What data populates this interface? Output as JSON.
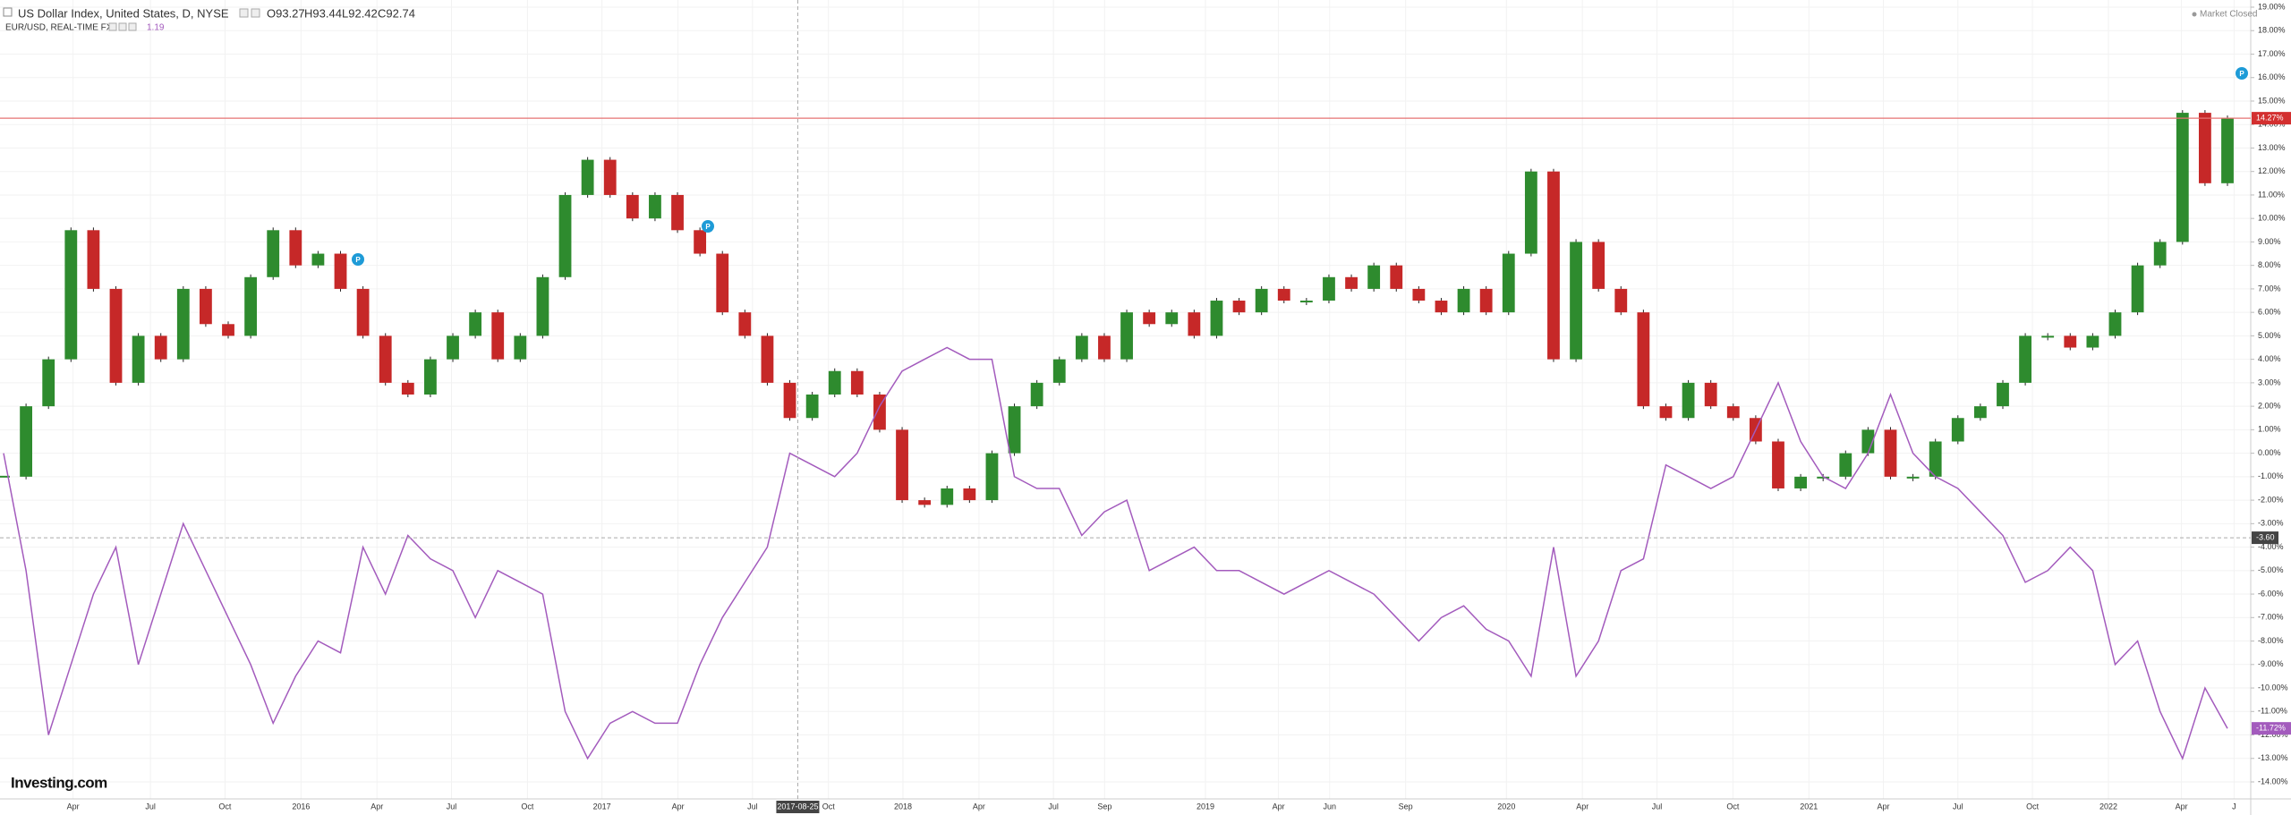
{
  "chart_data": {
    "type": "candle-line",
    "series": [
      {
        "name": "US Dollar Index, United States, D, NYSE",
        "up_color": "#2e8b2e",
        "down_color": "#c62828",
        "values": [
          -1,
          2,
          4,
          9.5,
          7,
          3,
          5,
          4,
          7,
          5.5,
          5,
          7.5,
          9.5,
          8,
          8.5,
          7,
          5,
          3,
          2.5,
          4,
          5,
          6,
          4,
          5,
          7.5,
          11,
          12.5,
          11,
          10,
          11,
          9.5,
          8.5,
          6,
          5,
          3,
          1.5,
          2.5,
          3.5,
          2.5,
          1,
          -2,
          -2.2,
          -1.5,
          -2,
          0,
          2,
          3,
          4,
          5,
          4,
          6,
          5.5,
          6,
          5,
          6.5,
          6,
          7,
          6.5,
          6.5,
          7.5,
          7,
          8,
          7,
          6.5,
          6,
          7,
          6,
          8.5,
          12,
          4,
          9,
          7,
          6,
          2,
          1.5,
          3,
          2,
          1.5,
          0.5,
          -1.5,
          -1,
          -1,
          0,
          1,
          -1,
          -1,
          0.5,
          1.5,
          2,
          3,
          5,
          5,
          4.5,
          5,
          6,
          8,
          9,
          14.5,
          11.5,
          14.27
        ]
      },
      {
        "name": "EUR/USD, REAL-TIME FX",
        "color": "#a35bbd",
        "values": [
          0,
          -5,
          -12,
          -9,
          -6,
          -4,
          -9,
          -6,
          -3,
          -5,
          -7,
          -9,
          -11.5,
          -9.5,
          -8,
          -8.5,
          -4,
          -6,
          -3.5,
          -4.5,
          -5,
          -7,
          -5,
          -5.5,
          -6,
          -11,
          -13,
          -11.5,
          -11,
          -11.5,
          -11.5,
          -9,
          -7,
          -5.5,
          -4,
          0,
          -0.5,
          -1,
          0,
          2,
          3.5,
          4,
          4.5,
          4,
          4,
          -1,
          -1.5,
          -1.5,
          -3.5,
          -2.5,
          -2,
          -5,
          -4.5,
          -4,
          -5,
          -5,
          -5.5,
          -6,
          -5.5,
          -5,
          -5.5,
          -6,
          -7,
          -8,
          -7,
          -6.5,
          -7.5,
          -8,
          -9.5,
          -4,
          -9.5,
          -8,
          -5,
          -4.5,
          -0.5,
          -1,
          -1.5,
          -1,
          1,
          3,
          0.5,
          -1,
          -1.5,
          0,
          2.5,
          0,
          -1,
          -1.5,
          -2.5,
          -3.5,
          -5.5,
          -5,
          -4,
          -5,
          -9,
          -8,
          -11,
          -13,
          -10,
          -11.72
        ]
      }
    ],
    "ohlc": [
      "O93.27",
      "H93.44",
      "L92.42",
      "C92.74"
    ],
    "eur_quote": "1.19",
    "status": "Market Closed",
    "brand": "Investing.com",
    "event_marker": "P",
    "price_line": {
      "value": 14.27,
      "label": "14.27%"
    },
    "crosshair": {
      "y": {
        "value": -3.6,
        "label": "-3.60"
      },
      "x_label": "2017-08-25"
    },
    "eur_last": {
      "value": -11.72,
      "label": "-11.72%"
    },
    "x_axis_labels": [
      "Apr",
      "Jul",
      "Oct",
      "2016",
      "Apr",
      "Jul",
      "Oct",
      "2017",
      "Apr",
      "Jul",
      "Oct",
      "2018",
      "Apr",
      "Jul",
      "Sep",
      "2019",
      "Apr",
      "Jun",
      "Sep",
      "2020",
      "Apr",
      "Jul",
      "Oct",
      "2021",
      "Apr",
      "Jul",
      "Oct",
      "2022",
      "Apr",
      "J"
    ],
    "ylim": [
      -14,
      19
    ],
    "yticks": [
      {
        "value": 19,
        "label": "19.00%"
      },
      {
        "value": 18,
        "label": "18.00%"
      },
      {
        "value": 17,
        "label": "17.00%"
      },
      {
        "value": 16,
        "label": "16.00%"
      },
      {
        "value": 15,
        "label": "15.00%"
      },
      {
        "value": 14,
        "label": "14.00%"
      },
      {
        "value": 13,
        "label": "13.00%"
      },
      {
        "value": 12,
        "label": "12.00%"
      },
      {
        "value": 11,
        "label": "11.00%"
      },
      {
        "value": 10,
        "label": "10.00%"
      },
      {
        "value": 9,
        "label": "9.00%"
      },
      {
        "value": 8,
        "label": "8.00%"
      },
      {
        "value": 7,
        "label": "7.00%"
      },
      {
        "value": 6,
        "label": "6.00%"
      },
      {
        "value": 5,
        "label": "5.00%"
      },
      {
        "value": 4,
        "label": "4.00%"
      },
      {
        "value": 3,
        "label": "3.00%"
      },
      {
        "value": 2,
        "label": "2.00%"
      },
      {
        "value": 1,
        "label": "1.00%"
      },
      {
        "value": 0,
        "label": "0.00%"
      },
      {
        "value": -1,
        "label": "-1.00%"
      },
      {
        "value": -2,
        "label": "-2.00%"
      },
      {
        "value": -3,
        "label": "-3.00%"
      },
      {
        "value": -4,
        "label": "-4.00%"
      },
      {
        "value": -5,
        "label": "-5.00%"
      },
      {
        "value": -6,
        "label": "-6.00%"
      },
      {
        "value": -7,
        "label": "-7.00%"
      },
      {
        "value": -8,
        "label": "-8.00%"
      },
      {
        "value": -9,
        "label": "-9.00%"
      },
      {
        "value": -10,
        "label": "-10.00%"
      },
      {
        "value": -11,
        "label": "-11.00%"
      },
      {
        "value": -12,
        "label": "-12.00%"
      },
      {
        "value": -13,
        "label": "-13.00%"
      },
      {
        "value": -14,
        "label": "-14.00%"
      }
    ],
    "grid": true
  }
}
